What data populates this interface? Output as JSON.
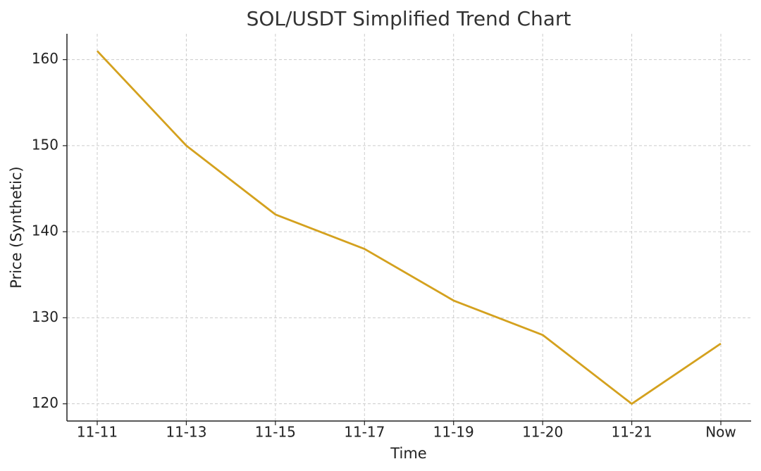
{
  "chart_data": {
    "type": "line",
    "title": "SOL/USDT Simplified Trend Chart",
    "x_label": "Time",
    "y_label": "Price (Synthetic)",
    "categories": [
      "11-11",
      "11-13",
      "11-15",
      "11-17",
      "11-19",
      "11-20",
      "11-21",
      "Now"
    ],
    "values": [
      161,
      150,
      142,
      138,
      132,
      128,
      120,
      127
    ],
    "color": "#d4a11e",
    "ylim": [
      118,
      163
    ],
    "yticks": [
      120,
      130,
      140,
      150,
      160
    ],
    "grid": true
  }
}
